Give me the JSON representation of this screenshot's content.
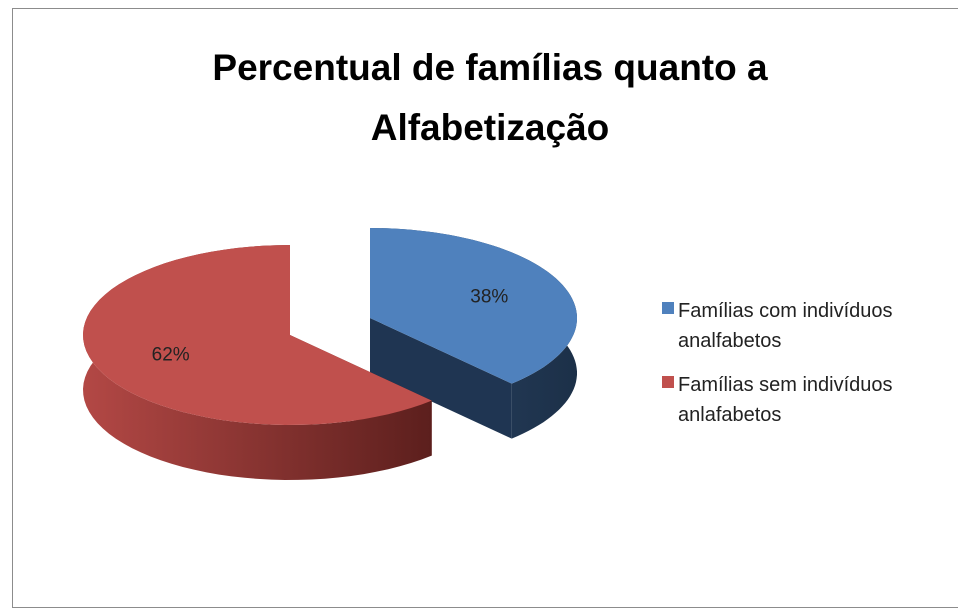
{
  "chart_data": {
    "type": "pie3d",
    "title": "Percentual de famílias quanto a Alfabetização",
    "series": [
      {
        "name": "Famílias com indivíduos analfabetos",
        "color": "#4f81bd"
      },
      {
        "name": "Famílias sem indivíduos anlafabetos",
        "color": "#c0504d"
      }
    ],
    "values": [
      38,
      62
    ],
    "value_labels": [
      "38%",
      "62%"
    ],
    "legend": "right"
  }
}
